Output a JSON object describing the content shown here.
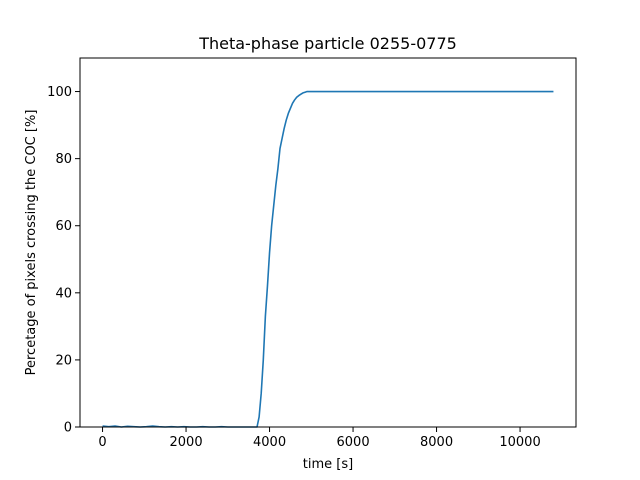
{
  "chart_data": {
    "type": "line",
    "title": "Theta-phase particle 0255-0775",
    "xlabel": "time [s]",
    "ylabel": "Percetage of pixels crossing the COC [%]",
    "xlim": [
      -540,
      11340
    ],
    "ylim": [
      0,
      110
    ],
    "xticks": [
      0,
      2000,
      4000,
      6000,
      8000,
      10000
    ],
    "yticks": [
      0,
      20,
      40,
      60,
      80,
      100
    ],
    "xtick_labels": [
      "0",
      "2000",
      "4000",
      "6000",
      "8000",
      "10000"
    ],
    "ytick_labels": [
      "0",
      "20",
      "40",
      "60",
      "80",
      "100"
    ],
    "grid": false,
    "color": "#1f77b4",
    "series": [
      {
        "x": [
          0,
          150,
          300,
          450,
          600,
          750,
          900,
          1050,
          1200,
          1350,
          1500,
          1650,
          1800,
          1950,
          2100,
          2250,
          2400,
          2550,
          2700,
          2850,
          3000,
          3150,
          3300,
          3450,
          3600,
          3700,
          3750,
          3800,
          3850,
          3900,
          3950,
          4000,
          4050,
          4100,
          4150,
          4200,
          4250,
          4300,
          4350,
          4400,
          4450,
          4500,
          4550,
          4600,
          4650,
          4700,
          4750,
          4800,
          4850,
          4900,
          4950,
          5000,
          5200,
          6000,
          7000,
          8000,
          9000,
          10000,
          10800
        ],
        "values": [
          0.3,
          0.1,
          0.3,
          0.0,
          0.2,
          0.1,
          0.0,
          0.1,
          0.3,
          0.1,
          0.0,
          0.1,
          0.0,
          0.1,
          0.0,
          0.0,
          0.1,
          0.0,
          0.0,
          0.1,
          0.0,
          0.0,
          0.0,
          0.0,
          0.0,
          0.0,
          3.0,
          10.0,
          20.0,
          33.0,
          42.0,
          52.0,
          60.0,
          66.0,
          72.0,
          77.0,
          83.0,
          86.0,
          89.0,
          91.5,
          93.5,
          95.0,
          96.5,
          97.5,
          98.3,
          98.8,
          99.2,
          99.6,
          99.8,
          100.0,
          100.0,
          100.0,
          100.0,
          100.0,
          100.0,
          100.0,
          100.0,
          100.0,
          100.0
        ]
      }
    ]
  }
}
